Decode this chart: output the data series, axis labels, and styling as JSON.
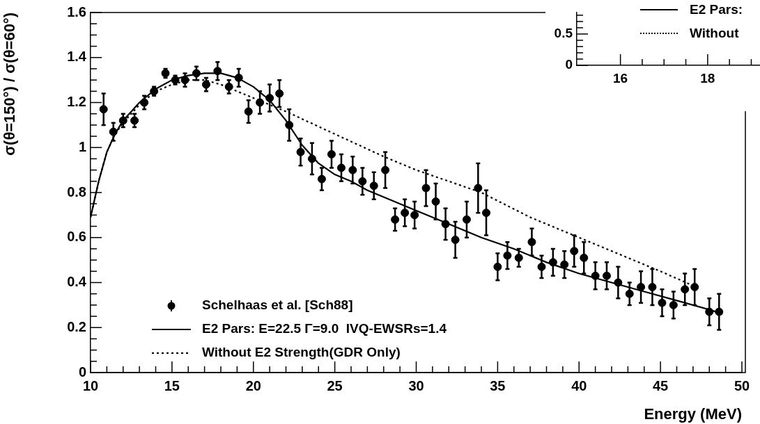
{
  "chart_data": [
    {
      "type": "scatter",
      "xlabel": "Energy (MeV)",
      "ylabel": "σ(θ=150°) / σ(θ=60°)",
      "xlim": [
        10,
        50
      ],
      "ylim": [
        0,
        1.6
      ],
      "xticks": [
        10,
        15,
        20,
        25,
        30,
        35,
        40,
        45,
        50
      ],
      "yticks": [
        0,
        0.2,
        0.4,
        0.6,
        0.8,
        1,
        1.2,
        1.4,
        1.6
      ],
      "grid": false,
      "legend": "bottom left",
      "series": [
        {
          "name": "Schelhaas et al. [Sch88]",
          "marker": "circle",
          "color": "#000000",
          "x": [
            10.8,
            11.4,
            12.0,
            12.7,
            13.3,
            13.9,
            14.6,
            15.2,
            15.8,
            16.5,
            17.1,
            17.8,
            18.5,
            19.1,
            19.7,
            20.4,
            21.0,
            21.6,
            22.2,
            22.9,
            23.6,
            24.2,
            24.8,
            25.4,
            26.1,
            26.7,
            27.4,
            28.1,
            28.7,
            29.3,
            29.9,
            30.6,
            31.2,
            31.8,
            32.4,
            33.1,
            33.8,
            34.3,
            35.0,
            35.6,
            36.3,
            37.1,
            37.7,
            38.4,
            39.1,
            39.7,
            40.3,
            41.0,
            41.7,
            42.4,
            43.1,
            43.8,
            44.5,
            45.1,
            45.8,
            46.5,
            47.1,
            48.0,
            48.6
          ],
          "values": [
            1.17,
            1.07,
            1.12,
            1.12,
            1.2,
            1.25,
            1.33,
            1.3,
            1.3,
            1.33,
            1.28,
            1.34,
            1.27,
            1.31,
            1.16,
            1.2,
            1.22,
            1.24,
            1.1,
            0.98,
            0.95,
            0.86,
            0.97,
            0.91,
            0.9,
            0.85,
            0.83,
            0.9,
            0.68,
            0.71,
            0.7,
            0.82,
            0.76,
            0.66,
            0.59,
            0.68,
            0.82,
            0.71,
            0.47,
            0.52,
            0.51,
            0.58,
            0.47,
            0.49,
            0.48,
            0.54,
            0.51,
            0.43,
            0.43,
            0.4,
            0.35,
            0.38,
            0.38,
            0.31,
            0.3,
            0.37,
            0.38,
            0.27,
            0.27
          ],
          "errors": [
            0.07,
            0.04,
            0.03,
            0.03,
            0.03,
            0.02,
            0.02,
            0.02,
            0.03,
            0.03,
            0.03,
            0.04,
            0.03,
            0.04,
            0.05,
            0.05,
            0.06,
            0.06,
            0.07,
            0.06,
            0.07,
            0.05,
            0.06,
            0.06,
            0.06,
            0.06,
            0.06,
            0.08,
            0.05,
            0.06,
            0.06,
            0.08,
            0.08,
            0.07,
            0.08,
            0.08,
            0.11,
            0.1,
            0.06,
            0.06,
            0.04,
            0.06,
            0.05,
            0.06,
            0.06,
            0.07,
            0.07,
            0.06,
            0.06,
            0.07,
            0.05,
            0.07,
            0.08,
            0.06,
            0.06,
            0.07,
            0.08,
            0.06,
            0.08
          ]
        },
        {
          "name": "E2 Pars: E=22.5 Γ=9.0  IVQ-EWSRs=1.4",
          "type": "line",
          "marker": "none",
          "line_style": "solid",
          "color": "#000000",
          "x": [
            10,
            10.5,
            11,
            11.5,
            12,
            13,
            14,
            15,
            16,
            17,
            18,
            19,
            20,
            21,
            22,
            23,
            24,
            25,
            26,
            27,
            28,
            30,
            32,
            34,
            36,
            38,
            40,
            42,
            44,
            46,
            48,
            48.8
          ],
          "values": [
            0.69,
            0.85,
            0.98,
            1.06,
            1.12,
            1.2,
            1.26,
            1.3,
            1.32,
            1.33,
            1.33,
            1.31,
            1.27,
            1.21,
            1.12,
            1.01,
            0.93,
            0.88,
            0.85,
            0.81,
            0.78,
            0.72,
            0.66,
            0.6,
            0.55,
            0.49,
            0.44,
            0.4,
            0.36,
            0.32,
            0.28,
            0.26
          ]
        },
        {
          "name": "Without E2 Strength(GDR Only)",
          "type": "line",
          "marker": "none",
          "line_style": "dotted",
          "color": "#000000",
          "x": [
            10,
            10.5,
            11,
            11.5,
            12,
            13,
            14,
            15,
            16,
            17,
            18,
            19,
            20,
            21,
            22,
            25,
            28,
            30,
            34,
            37,
            40,
            43,
            45,
            47.2
          ],
          "values": [
            0.69,
            0.85,
            0.98,
            1.06,
            1.11,
            1.19,
            1.25,
            1.28,
            1.3,
            1.3,
            1.28,
            1.25,
            1.22,
            1.19,
            1.16,
            1.06,
            0.96,
            0.9,
            0.8,
            0.69,
            0.6,
            0.51,
            0.45,
            0.38
          ]
        }
      ]
    },
    {
      "type": "line",
      "xlim": [
        15,
        19.2
      ],
      "ylim": [
        0,
        0.85
      ],
      "xticks": [
        16,
        18
      ],
      "yticks": [
        0,
        0.5
      ],
      "grid": false,
      "annotations": [
        "E2 Pars:",
        "Without"
      ]
    }
  ]
}
